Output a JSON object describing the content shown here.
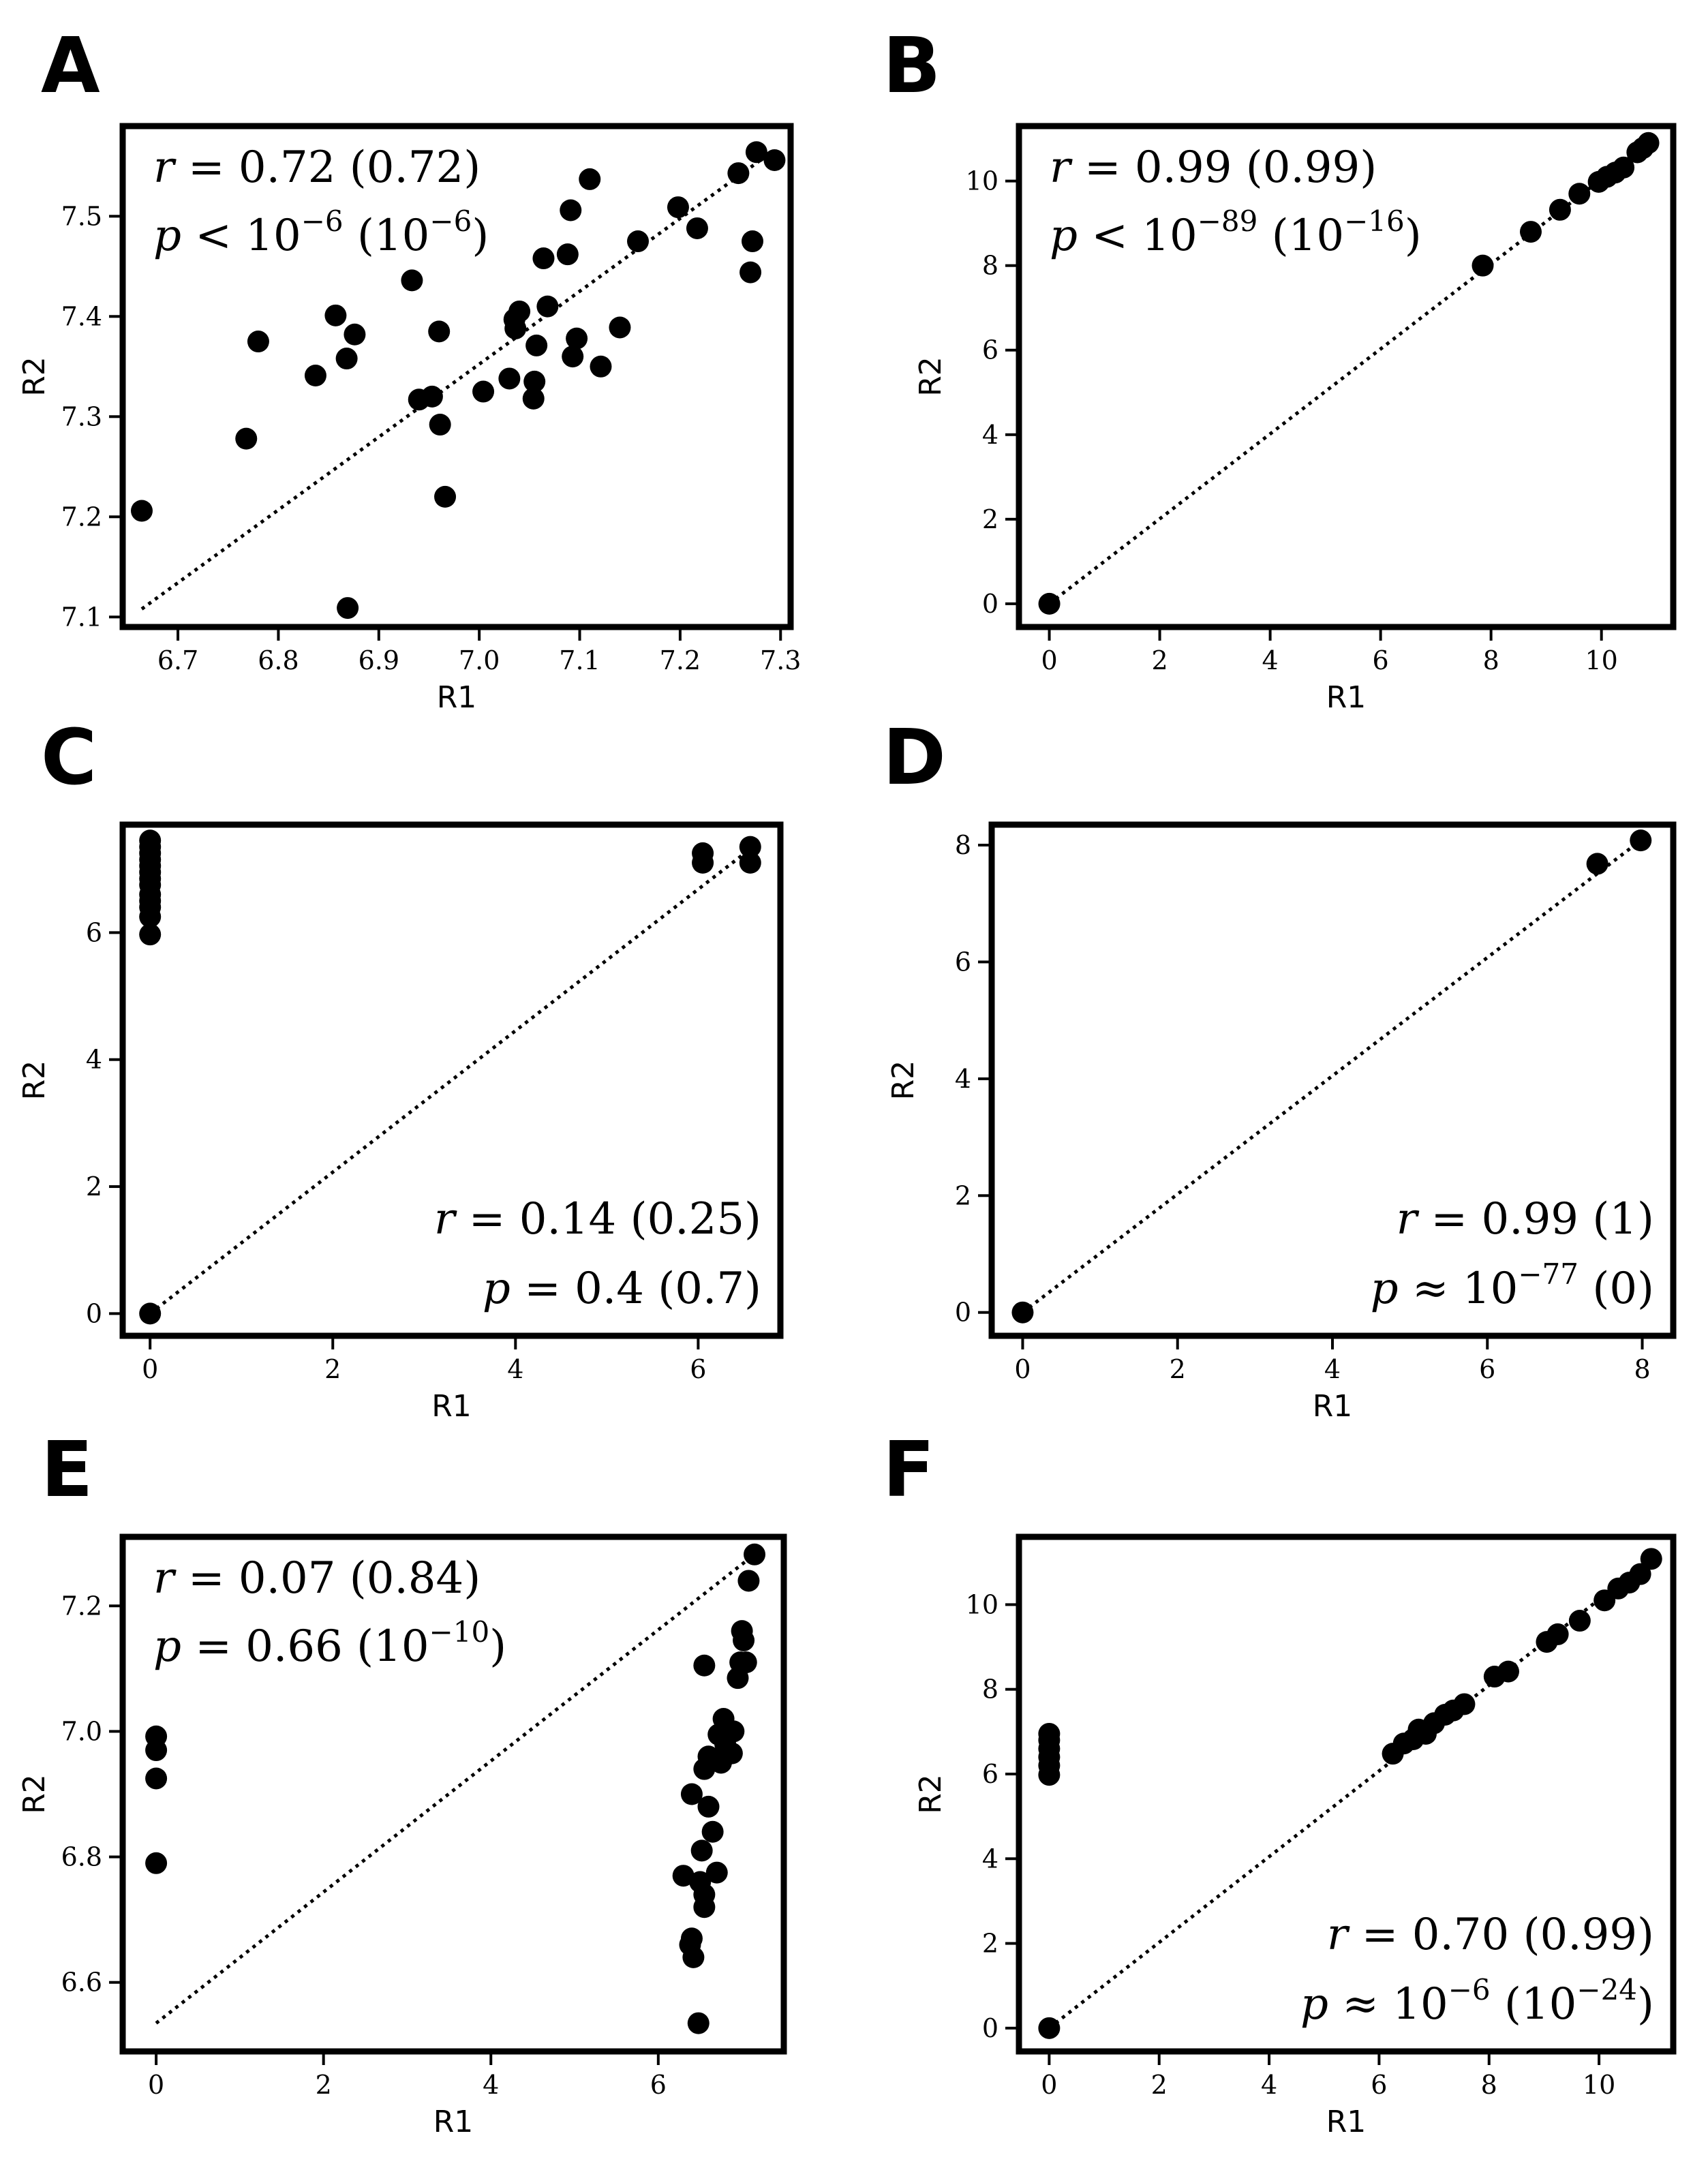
{
  "chart_data": [
    {
      "panel": "A",
      "type": "scatter",
      "xlabel": "R1",
      "ylabel": "R2",
      "xlim": [
        6.645,
        7.31
      ],
      "ylim": [
        7.09,
        7.59
      ],
      "xticks": [
        6.7,
        6.8,
        6.9,
        7.0,
        7.1,
        7.2,
        7.3
      ],
      "xtick_labels": [
        "6.7",
        "6.8",
        "6.9",
        "7.0",
        "7.1",
        "7.2",
        "7.3"
      ],
      "yticks": [
        7.1,
        7.2,
        7.3,
        7.4,
        7.5
      ],
      "ytick_labels": [
        "7.1",
        "7.2",
        "7.3",
        "7.4",
        "7.5"
      ],
      "fit_line": [
        [
          6.664,
          7.108
        ],
        [
          7.28,
          7.556
        ]
      ],
      "stats_position": "top-left",
      "stats": {
        "line1": {
          "var": "r",
          "op": "=",
          "value": "0.72",
          "paren": "(0.72)"
        },
        "line2": {
          "var": "p",
          "op": "<",
          "base": "10",
          "exp": "−6",
          "paren_base": "(10",
          "paren_exp": "−6",
          "paren_close": ")"
        }
      },
      "points": [
        [
          6.664,
          7.206
        ],
        [
          6.768,
          7.278
        ],
        [
          6.78,
          7.375
        ],
        [
          6.837,
          7.341
        ],
        [
          6.857,
          7.401
        ],
        [
          6.868,
          7.358
        ],
        [
          6.876,
          7.382
        ],
        [
          6.869,
          7.109
        ],
        [
          6.933,
          7.436
        ],
        [
          6.94,
          7.317
        ],
        [
          6.953,
          7.32
        ],
        [
          6.96,
          7.385
        ],
        [
          6.961,
          7.292
        ],
        [
          6.966,
          7.22
        ],
        [
          7.004,
          7.325
        ],
        [
          7.03,
          7.338
        ],
        [
          7.035,
          7.397
        ],
        [
          7.036,
          7.388
        ],
        [
          7.04,
          7.405
        ],
        [
          7.054,
          7.318
        ],
        [
          7.055,
          7.335
        ],
        [
          7.057,
          7.371
        ],
        [
          7.064,
          7.458
        ],
        [
          7.068,
          7.41
        ],
        [
          7.088,
          7.462
        ],
        [
          7.091,
          7.506
        ],
        [
          7.093,
          7.36
        ],
        [
          7.097,
          7.378
        ],
        [
          7.11,
          7.537
        ],
        [
          7.121,
          7.35
        ],
        [
          7.14,
          7.389
        ],
        [
          7.158,
          7.475
        ],
        [
          7.198,
          7.509
        ],
        [
          7.217,
          7.488
        ],
        [
          7.258,
          7.543
        ],
        [
          7.27,
          7.444
        ],
        [
          7.272,
          7.475
        ],
        [
          7.276,
          7.564
        ],
        [
          7.294,
          7.556
        ]
      ]
    },
    {
      "panel": "B",
      "type": "scatter",
      "xlabel": "R1",
      "ylabel": "R2",
      "xlim": [
        -0.55,
        11.3
      ],
      "ylim": [
        -0.55,
        11.3
      ],
      "xticks": [
        0,
        2,
        4,
        6,
        8,
        10
      ],
      "xtick_labels": [
        "0",
        "2",
        "4",
        "6",
        "8",
        "10"
      ],
      "yticks": [
        0,
        2,
        4,
        6,
        8,
        10
      ],
      "ytick_labels": [
        "0",
        "2",
        "4",
        "6",
        "8",
        "10"
      ],
      "fit_line": [
        [
          0,
          0
        ],
        [
          10.85,
          10.9
        ]
      ],
      "stats_position": "top-left",
      "stats": {
        "line1": {
          "var": "r",
          "op": "=",
          "value": "0.99",
          "paren": "(0.99)"
        },
        "line2": {
          "var": "p",
          "op": "<",
          "base": "10",
          "exp": "−89",
          "paren_base": "(10",
          "paren_exp": "−16",
          "paren_close": ")"
        }
      },
      "points": [
        [
          0,
          0
        ],
        [
          7.85,
          8.0
        ],
        [
          8.72,
          8.8
        ],
        [
          9.25,
          9.32
        ],
        [
          9.6,
          9.7
        ],
        [
          9.95,
          9.98
        ],
        [
          10.1,
          10.1
        ],
        [
          10.25,
          10.2
        ],
        [
          10.4,
          10.32
        ],
        [
          10.65,
          10.68
        ],
        [
          10.75,
          10.78
        ],
        [
          10.85,
          10.9
        ]
      ]
    },
    {
      "panel": "C",
      "type": "scatter",
      "xlabel": "R1",
      "ylabel": "R2",
      "xlim": [
        -0.3,
        6.9
      ],
      "ylim": [
        -0.35,
        7.7
      ],
      "xticks": [
        0,
        2,
        4,
        6
      ],
      "xtick_labels": [
        "0",
        "2",
        "4",
        "6"
      ],
      "yticks": [
        0,
        2,
        4,
        6
      ],
      "ytick_labels": [
        "0",
        "2",
        "4",
        "6"
      ],
      "fit_line": [
        [
          0,
          0
        ],
        [
          6.6,
          7.35
        ]
      ],
      "stats_position": "bottom-right",
      "stats": {
        "line1": {
          "var": "r",
          "op": "=",
          "value": "0.14",
          "paren": "(0.25)"
        },
        "line2": {
          "var": "p",
          "op": "=",
          "value": "0.4",
          "paren": "(0.7)"
        }
      },
      "points": [
        [
          0,
          0
        ],
        [
          0,
          5.97
        ],
        [
          0,
          6.25
        ],
        [
          0,
          6.4
        ],
        [
          0,
          6.5
        ],
        [
          0,
          6.6
        ],
        [
          0,
          6.75
        ],
        [
          0,
          6.85
        ],
        [
          0,
          6.95
        ],
        [
          0,
          7.05
        ],
        [
          0,
          7.15
        ],
        [
          0,
          7.25
        ],
        [
          0,
          7.35
        ],
        [
          0,
          7.45
        ],
        [
          6.05,
          7.1
        ],
        [
          6.05,
          7.25
        ],
        [
          6.57,
          7.1
        ],
        [
          6.57,
          7.35
        ]
      ]
    },
    {
      "panel": "D",
      "type": "scatter",
      "xlabel": "R1",
      "ylabel": "R2",
      "xlim": [
        -0.4,
        8.4
      ],
      "ylim": [
        -0.4,
        8.35
      ],
      "xticks": [
        0,
        2,
        4,
        6,
        8
      ],
      "xtick_labels": [
        "0",
        "2",
        "4",
        "6",
        "8"
      ],
      "yticks": [
        0,
        2,
        4,
        6,
        8
      ],
      "ytick_labels": [
        "0",
        "2",
        "4",
        "6",
        "8"
      ],
      "fit_line": [
        [
          0,
          0
        ],
        [
          7.98,
          8.08
        ]
      ],
      "stats_position": "bottom-right",
      "stats": {
        "line1": {
          "var": "r",
          "op": "=",
          "value": "0.99",
          "paren": "(1)"
        },
        "line2": {
          "var": "p",
          "op": "≈",
          "base": "10",
          "exp": "−77",
          "paren": "(0)"
        }
      },
      "points": [
        [
          0,
          0
        ],
        [
          7.42,
          7.68
        ],
        [
          7.98,
          8.08
        ]
      ]
    },
    {
      "panel": "E",
      "type": "scatter",
      "xlabel": "R1",
      "ylabel": "R2",
      "xlim": [
        -0.4,
        7.5
      ],
      "ylim": [
        6.49,
        7.31
      ],
      "xticks": [
        0,
        2,
        4,
        6
      ],
      "xtick_labels": [
        "0",
        "2",
        "4",
        "6"
      ],
      "yticks": [
        6.6,
        6.8,
        7.0,
        7.2
      ],
      "ytick_labels": [
        "6.6",
        "6.8",
        "7.0",
        "7.2"
      ],
      "fit_line": [
        [
          0,
          6.535
        ],
        [
          7.15,
          7.282
        ]
      ],
      "stats_position": "top-left",
      "stats": {
        "line1": {
          "var": "r",
          "op": "=",
          "value": "0.07",
          "paren": "(0.84)"
        },
        "line2": {
          "var": "p",
          "op": "=",
          "value": "0.66",
          "paren_base": "(10",
          "paren_exp": "−10",
          "paren_close": ")"
        }
      },
      "points": [
        [
          0,
          6.79
        ],
        [
          0,
          6.925
        ],
        [
          0,
          6.97
        ],
        [
          0,
          6.992
        ],
        [
          6.3,
          6.77
        ],
        [
          6.38,
          6.66
        ],
        [
          6.4,
          6.9
        ],
        [
          6.4,
          6.67
        ],
        [
          6.42,
          6.64
        ],
        [
          6.48,
          6.535
        ],
        [
          6.5,
          6.76
        ],
        [
          6.52,
          6.81
        ],
        [
          6.55,
          6.72
        ],
        [
          6.55,
          6.74
        ],
        [
          6.55,
          6.94
        ],
        [
          6.55,
          7.105
        ],
        [
          6.6,
          6.96
        ],
        [
          6.6,
          6.88
        ],
        [
          6.65,
          6.84
        ],
        [
          6.65,
          6.955
        ],
        [
          6.7,
          6.775
        ],
        [
          6.72,
          6.995
        ],
        [
          6.75,
          6.95
        ],
        [
          6.78,
          7.02
        ],
        [
          6.8,
          6.98
        ],
        [
          6.85,
          7.0
        ],
        [
          6.88,
          6.965
        ],
        [
          6.9,
          7.0
        ],
        [
          6.95,
          7.085
        ],
        [
          6.98,
          7.11
        ],
        [
          7.0,
          7.16
        ],
        [
          7.02,
          7.145
        ],
        [
          7.05,
          7.11
        ],
        [
          7.08,
          7.24
        ],
        [
          7.15,
          7.282
        ]
      ]
    },
    {
      "panel": "F",
      "type": "scatter",
      "xlabel": "R1",
      "ylabel": "R2",
      "xlim": [
        -0.55,
        11.35
      ],
      "ylim": [
        -0.55,
        11.6
      ],
      "xticks": [
        0,
        2,
        4,
        6,
        8,
        10
      ],
      "xtick_labels": [
        "0",
        "2",
        "4",
        "6",
        "8",
        "10"
      ],
      "yticks": [
        0,
        2,
        4,
        6,
        8,
        10
      ],
      "ytick_labels": [
        "0",
        "2",
        "4",
        "6",
        "8",
        "10"
      ],
      "fit_line": [
        [
          0,
          0
        ],
        [
          10.95,
          11.08
        ]
      ],
      "stats_position": "bottom-right",
      "stats": {
        "line1": {
          "var": "r",
          "op": "=",
          "value": "0.70",
          "paren": "(0.99)"
        },
        "line2": {
          "var": "p",
          "op": "≈",
          "base": "10",
          "exp": "−6",
          "paren_base": "(10",
          "paren_exp": "−24",
          "paren_close": ")"
        }
      },
      "points": [
        [
          0,
          0
        ],
        [
          0,
          5.98
        ],
        [
          0,
          6.2
        ],
        [
          0,
          6.4
        ],
        [
          0,
          6.6
        ],
        [
          0,
          6.8
        ],
        [
          0,
          6.95
        ],
        [
          6.25,
          6.48
        ],
        [
          6.45,
          6.72
        ],
        [
          6.62,
          6.82
        ],
        [
          6.72,
          7.05
        ],
        [
          6.85,
          6.95
        ],
        [
          7.0,
          7.2
        ],
        [
          7.2,
          7.4
        ],
        [
          7.35,
          7.5
        ],
        [
          7.55,
          7.65
        ],
        [
          8.1,
          8.3
        ],
        [
          8.35,
          8.42
        ],
        [
          9.05,
          9.12
        ],
        [
          9.25,
          9.3
        ],
        [
          9.65,
          9.62
        ],
        [
          10.1,
          10.1
        ],
        [
          10.35,
          10.38
        ],
        [
          10.55,
          10.52
        ],
        [
          10.75,
          10.72
        ],
        [
          10.95,
          11.08
        ]
      ]
    }
  ]
}
